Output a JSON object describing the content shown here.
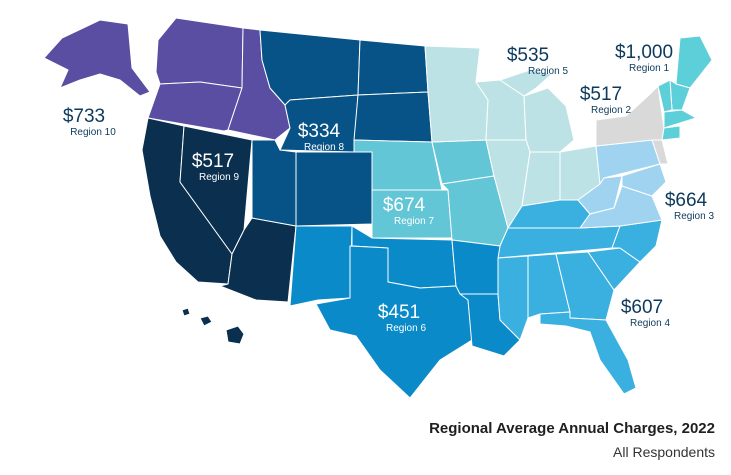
{
  "caption": {
    "title": "Regional Average Annual Charges, 2022",
    "subtitle": "All Respondents"
  },
  "colors": {
    "region_1": "#5ccfd8",
    "region_2": "#d9d9d9",
    "region_3": "#9fd3f0",
    "region_4": "#3ab0e0",
    "region_5": "#bde2e6",
    "region_6": "#0a8ac8",
    "region_7": "#62c6d6",
    "region_8": "#075286",
    "region_9": "#0b2f4e",
    "region_10": "#5a4ea3"
  },
  "regions": [
    {
      "id": "region_1",
      "amount": "$1,000",
      "name": "Region 1"
    },
    {
      "id": "region_2",
      "amount": "$517",
      "name": "Region 2"
    },
    {
      "id": "region_3",
      "amount": "$664",
      "name": "Region 3"
    },
    {
      "id": "region_4",
      "amount": "$607",
      "name": "Region 4"
    },
    {
      "id": "region_5",
      "amount": "$535",
      "name": "Region 5"
    },
    {
      "id": "region_6",
      "amount": "$451",
      "name": "Region 6"
    },
    {
      "id": "region_7",
      "amount": "$674",
      "name": "Region 7"
    },
    {
      "id": "region_8",
      "amount": "$334",
      "name": "Region 8"
    },
    {
      "id": "region_9",
      "amount": "$517",
      "name": "Region 9"
    },
    {
      "id": "region_10",
      "amount": "$733",
      "name": "Region 10"
    }
  ]
}
